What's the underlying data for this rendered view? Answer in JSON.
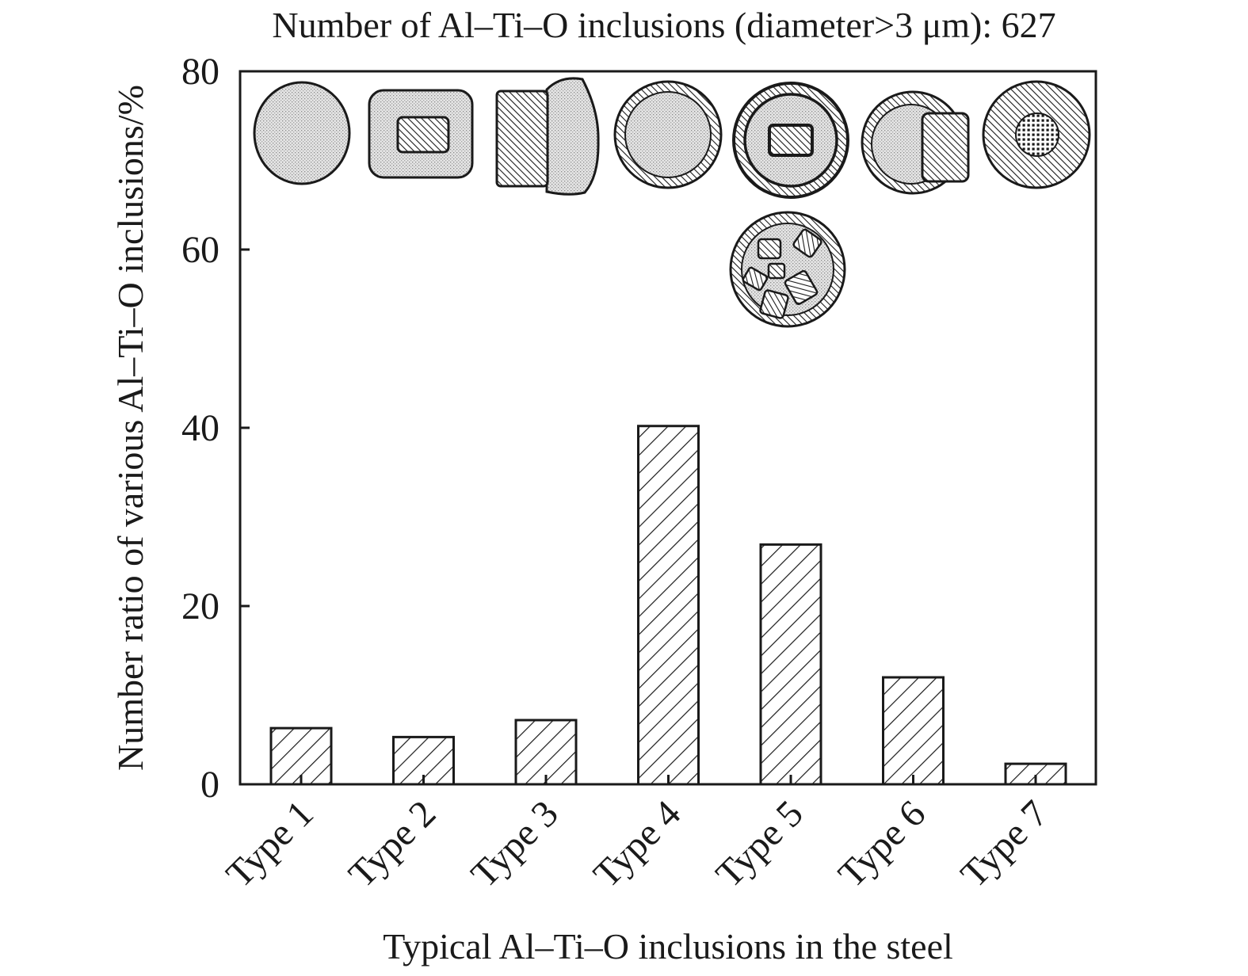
{
  "chart_data": {
    "type": "bar",
    "title": "Number of Al–Ti–O inclusions (diameter>3 μm): 627",
    "xlabel": "Typical Al–Ti–O inclusions in the steel",
    "ylabel": "Number ratio of various Al–Ti–O inclusions/%",
    "categories": [
      "Type 1",
      "Type 2",
      "Type 3",
      "Type 4",
      "Type 5",
      "Type 6",
      "Type 7"
    ],
    "values": [
      6.3,
      5.3,
      7.2,
      40.2,
      26.9,
      12.0,
      2.3
    ],
    "ylim": [
      0,
      80
    ],
    "yticks": [
      "0",
      "20",
      "40",
      "60",
      "80"
    ],
    "grid": false,
    "legend": "none",
    "bar_fill": "diagonal-hatch",
    "colors": {
      "stroke": "#1a1a1a",
      "background": "#ffffff",
      "fill": "#ffffff"
    },
    "inclusion_icons": [
      "round-single-phase-icon",
      "rounded-square-with-core-icon",
      "two-phase-side-by-side-icon",
      "round-with-outer-ring-icon",
      "round-with-ring-and-core-icon",
      "round-with-attached-block-icon",
      "round-hatched-with-dotted-core-icon",
      "round-with-multiple-blocks-icon"
    ]
  }
}
